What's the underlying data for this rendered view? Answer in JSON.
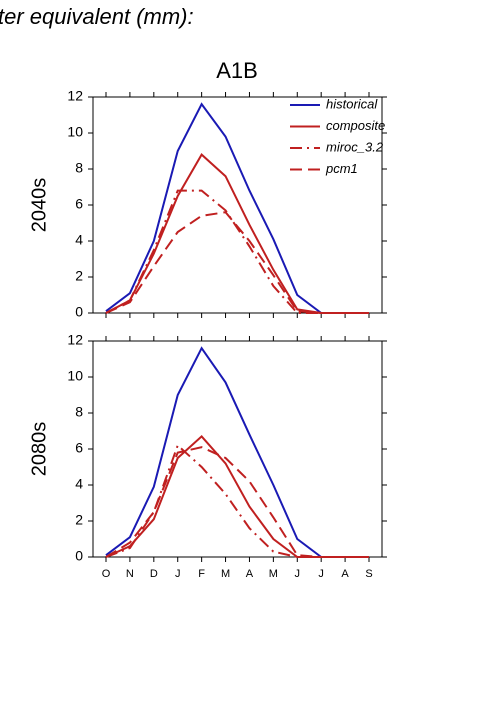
{
  "header": {
    "text": "ter equivalent (mm):"
  },
  "chart_data": [
    {
      "type": "line",
      "title": "A1B",
      "ylabel": "2040s",
      "ylim": [
        0,
        12
      ],
      "yticks": [
        0,
        2,
        4,
        6,
        8,
        10,
        12
      ],
      "legend": "upper right",
      "series": [
        {
          "name": "historical",
          "color": "#1a1ab4",
          "style": "solid",
          "values": [
            0.1,
            1.1,
            4,
            9,
            11.6,
            9.8,
            6.8,
            4.1,
            1,
            0,
            0,
            0
          ]
        },
        {
          "name": "composite",
          "color": "#c02020",
          "style": "solid",
          "values": [
            0,
            0.7,
            3.3,
            6.5,
            8.8,
            7.6,
            4.9,
            2.4,
            0.2,
            0,
            0,
            0
          ]
        },
        {
          "name": "miroc_3.2",
          "color": "#c02020",
          "style": "dashdot",
          "values": [
            0,
            0.7,
            3.5,
            6.8,
            6.8,
            5.7,
            3.7,
            1.5,
            0,
            0,
            0,
            0
          ]
        },
        {
          "name": "pcm1",
          "color": "#c02020",
          "style": "dashed",
          "values": [
            0,
            0.6,
            2.6,
            4.5,
            5.4,
            5.6,
            4,
            2.1,
            0.1,
            0,
            0,
            0
          ]
        }
      ]
    },
    {
      "type": "line",
      "ylabel": "2080s",
      "categories": [
        "O",
        "N",
        "D",
        "J",
        "F",
        "M",
        "A",
        "M",
        "J",
        "J",
        "A",
        "S"
      ],
      "ylim": [
        0,
        12
      ],
      "yticks": [
        0,
        2,
        4,
        6,
        8,
        10,
        12
      ],
      "series": [
        {
          "color": "#1a1ab4",
          "style": "solid",
          "values": [
            0.1,
            1.1,
            3.9,
            9,
            11.6,
            9.7,
            6.8,
            4,
            1,
            0,
            0,
            0
          ]
        },
        {
          "color": "#c02020",
          "style": "solid",
          "values": [
            0,
            0.6,
            2.1,
            5.5,
            6.7,
            5.2,
            2.8,
            1,
            0,
            0,
            0,
            0
          ]
        },
        {
          "color": "#c02020",
          "style": "dashdot",
          "values": [
            0,
            0.5,
            2.5,
            6.2,
            5,
            3.5,
            1.6,
            0.3,
            0,
            0,
            0,
            0
          ]
        },
        {
          "color": "#c02020",
          "style": "dashed",
          "values": [
            0,
            0.8,
            2.5,
            5.8,
            6.1,
            5.5,
            4.2,
            2.2,
            0.1,
            0,
            0,
            0
          ]
        }
      ]
    }
  ]
}
